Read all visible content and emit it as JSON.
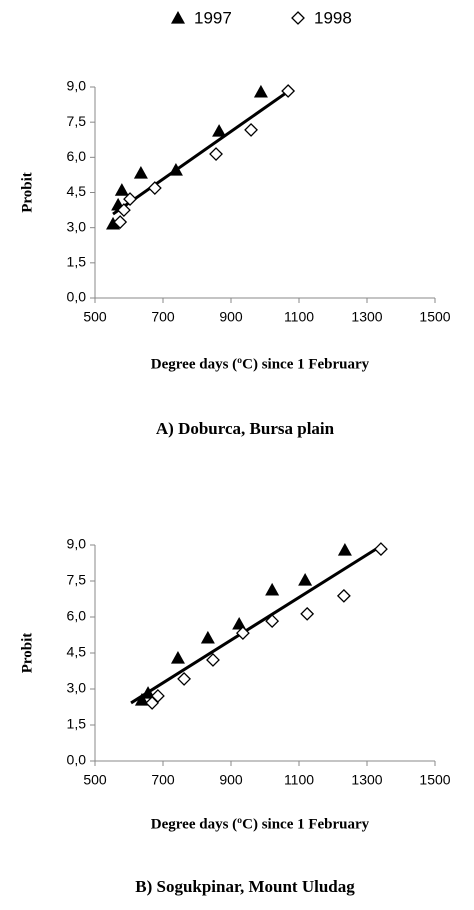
{
  "chart_data": [
    {
      "type": "scatter",
      "caption": "A) Doburca, Bursa plain",
      "xlabel": "Degree days (ºC) since 1 February",
      "ylabel": "Probit",
      "series": [
        {
          "name": "1997",
          "color": "#000000",
          "marker": "triangle",
          "x": [
            553,
            568,
            579,
            635,
            738,
            865,
            988
          ],
          "values": [
            3.16,
            3.97,
            4.6,
            5.33,
            5.46,
            7.12,
            8.79
          ]
        },
        {
          "name": "1998",
          "color": "#000000",
          "marker": "diamond",
          "x": [
            574,
            585,
            603,
            676,
            856,
            959,
            1068
          ],
          "values": [
            3.24,
            3.75,
            4.22,
            4.69,
            6.14,
            7.17,
            8.83
          ]
        }
      ],
      "trend": {
        "x": [
          553,
          1074
        ],
        "values": [
          3.58,
          8.87
        ]
      },
      "xlim": [
        500,
        1500
      ],
      "xticks": [
        500,
        700,
        900,
        1100,
        1300,
        1500
      ],
      "ylim": [
        0,
        9
      ],
      "yticks": [
        {
          "value": 0,
          "label": "0,0"
        },
        {
          "value": 1.5,
          "label": "1,5"
        },
        {
          "value": 3,
          "label": "3,0"
        },
        {
          "value": 4.5,
          "label": "4,5"
        },
        {
          "value": 6,
          "label": "6,0"
        },
        {
          "value": 7.5,
          "label": "7,5"
        },
        {
          "value": 9,
          "label": "9,0"
        }
      ]
    },
    {
      "type": "scatter",
      "caption": "B) Sogukpinar, Mount Uludag",
      "xlabel": "Degree days (ºC) since 1 February",
      "ylabel": "Probit",
      "series": [
        {
          "name": "1997",
          "color": "#000000",
          "marker": "triangle",
          "x": [
            638,
            656,
            744,
            832,
            924,
            1021,
            1118,
            1235
          ],
          "values": [
            2.54,
            2.83,
            4.29,
            5.13,
            5.71,
            7.13,
            7.54,
            8.79
          ]
        },
        {
          "name": "1998",
          "color": "#000000",
          "marker": "diamond",
          "x": [
            668,
            685,
            762,
            847,
            935,
            1021,
            1124,
            1232,
            1341
          ],
          "values": [
            2.42,
            2.71,
            3.42,
            4.21,
            5.33,
            5.83,
            6.13,
            6.88,
            8.83
          ]
        }
      ],
      "trend": {
        "x": [
          606,
          1341
        ],
        "values": [
          2.42,
          8.96
        ]
      },
      "xlim": [
        500,
        1500
      ],
      "xticks": [
        500,
        700,
        900,
        1100,
        1300,
        1500
      ],
      "ylim": [
        0,
        9
      ],
      "yticks": [
        {
          "value": 0,
          "label": "0,0"
        },
        {
          "value": 1.5,
          "label": "1,5"
        },
        {
          "value": 3,
          "label": "3,0"
        },
        {
          "value": 4.5,
          "label": "4,5"
        },
        {
          "value": 6,
          "label": "6,0"
        },
        {
          "value": 7.5,
          "label": "7,5"
        },
        {
          "value": 9,
          "label": "9,0"
        }
      ]
    }
  ]
}
